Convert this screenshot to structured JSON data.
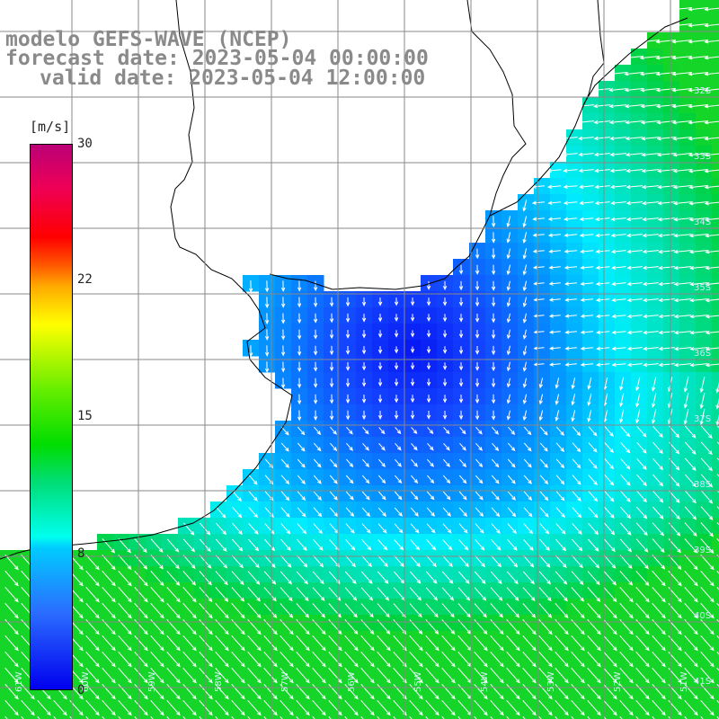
{
  "title": {
    "line1": "modelo GEFS-WAVE (NCEP)",
    "line2": "forecast date: 2023-05-04 00:00:00",
    "line3": "valid date: 2023-05-04 12:00:00"
  },
  "colorbar": {
    "unit": "[m/s]",
    "ticks": [
      "30",
      "22",
      "15",
      "8",
      "0"
    ],
    "range": [
      0,
      30
    ],
    "colors": [
      "#0000ee",
      "#00ccff",
      "#00dd00",
      "#ffff00",
      "#ff0000",
      "#bb0077"
    ]
  },
  "map": {
    "variable": "wind speed and direction",
    "projection": "lat-lon",
    "lat_labels": [
      "32S",
      "33S",
      "34S",
      "35S",
      "36S",
      "37S",
      "38S",
      "39S",
      "40S",
      "41S"
    ],
    "lon_labels": [
      "61W",
      "60W",
      "59W",
      "58W",
      "57W",
      "56W",
      "55W",
      "54W",
      "53W",
      "52W",
      "51W"
    ],
    "land_color": "#ffffff",
    "coastline_color": "#000000",
    "grid_color": "#888888",
    "arrow_color": "#ffffff"
  }
}
